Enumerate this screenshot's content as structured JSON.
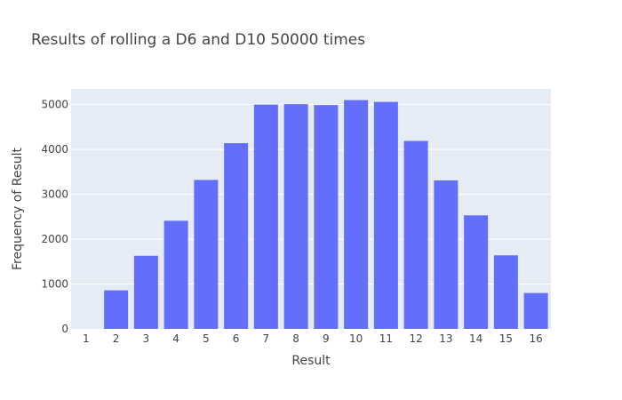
{
  "chart_data": {
    "type": "bar",
    "title": "Results of rolling a D6 and D10 50000 times",
    "xlabel": "Result",
    "ylabel": "Frequency of Result",
    "categories": [
      "1",
      "2",
      "3",
      "4",
      "5",
      "6",
      "7",
      "8",
      "9",
      "10",
      "11",
      "12",
      "13",
      "14",
      "15",
      "16"
    ],
    "values": [
      0,
      860,
      1630,
      2410,
      3320,
      4140,
      5000,
      5010,
      4990,
      5100,
      5060,
      4190,
      3310,
      2530,
      1640,
      800
    ],
    "ylim": [
      0,
      5350
    ],
    "yticks": [
      0,
      1000,
      2000,
      3000,
      4000,
      5000
    ],
    "ytick_labels": [
      "0",
      "1000",
      "2000",
      "3000",
      "4000",
      "5000"
    ],
    "grid": true,
    "colors": {
      "bar": "#636efa",
      "plot_bg": "#e5ecf6",
      "grid": "#ffffff",
      "text": "#444444"
    }
  }
}
